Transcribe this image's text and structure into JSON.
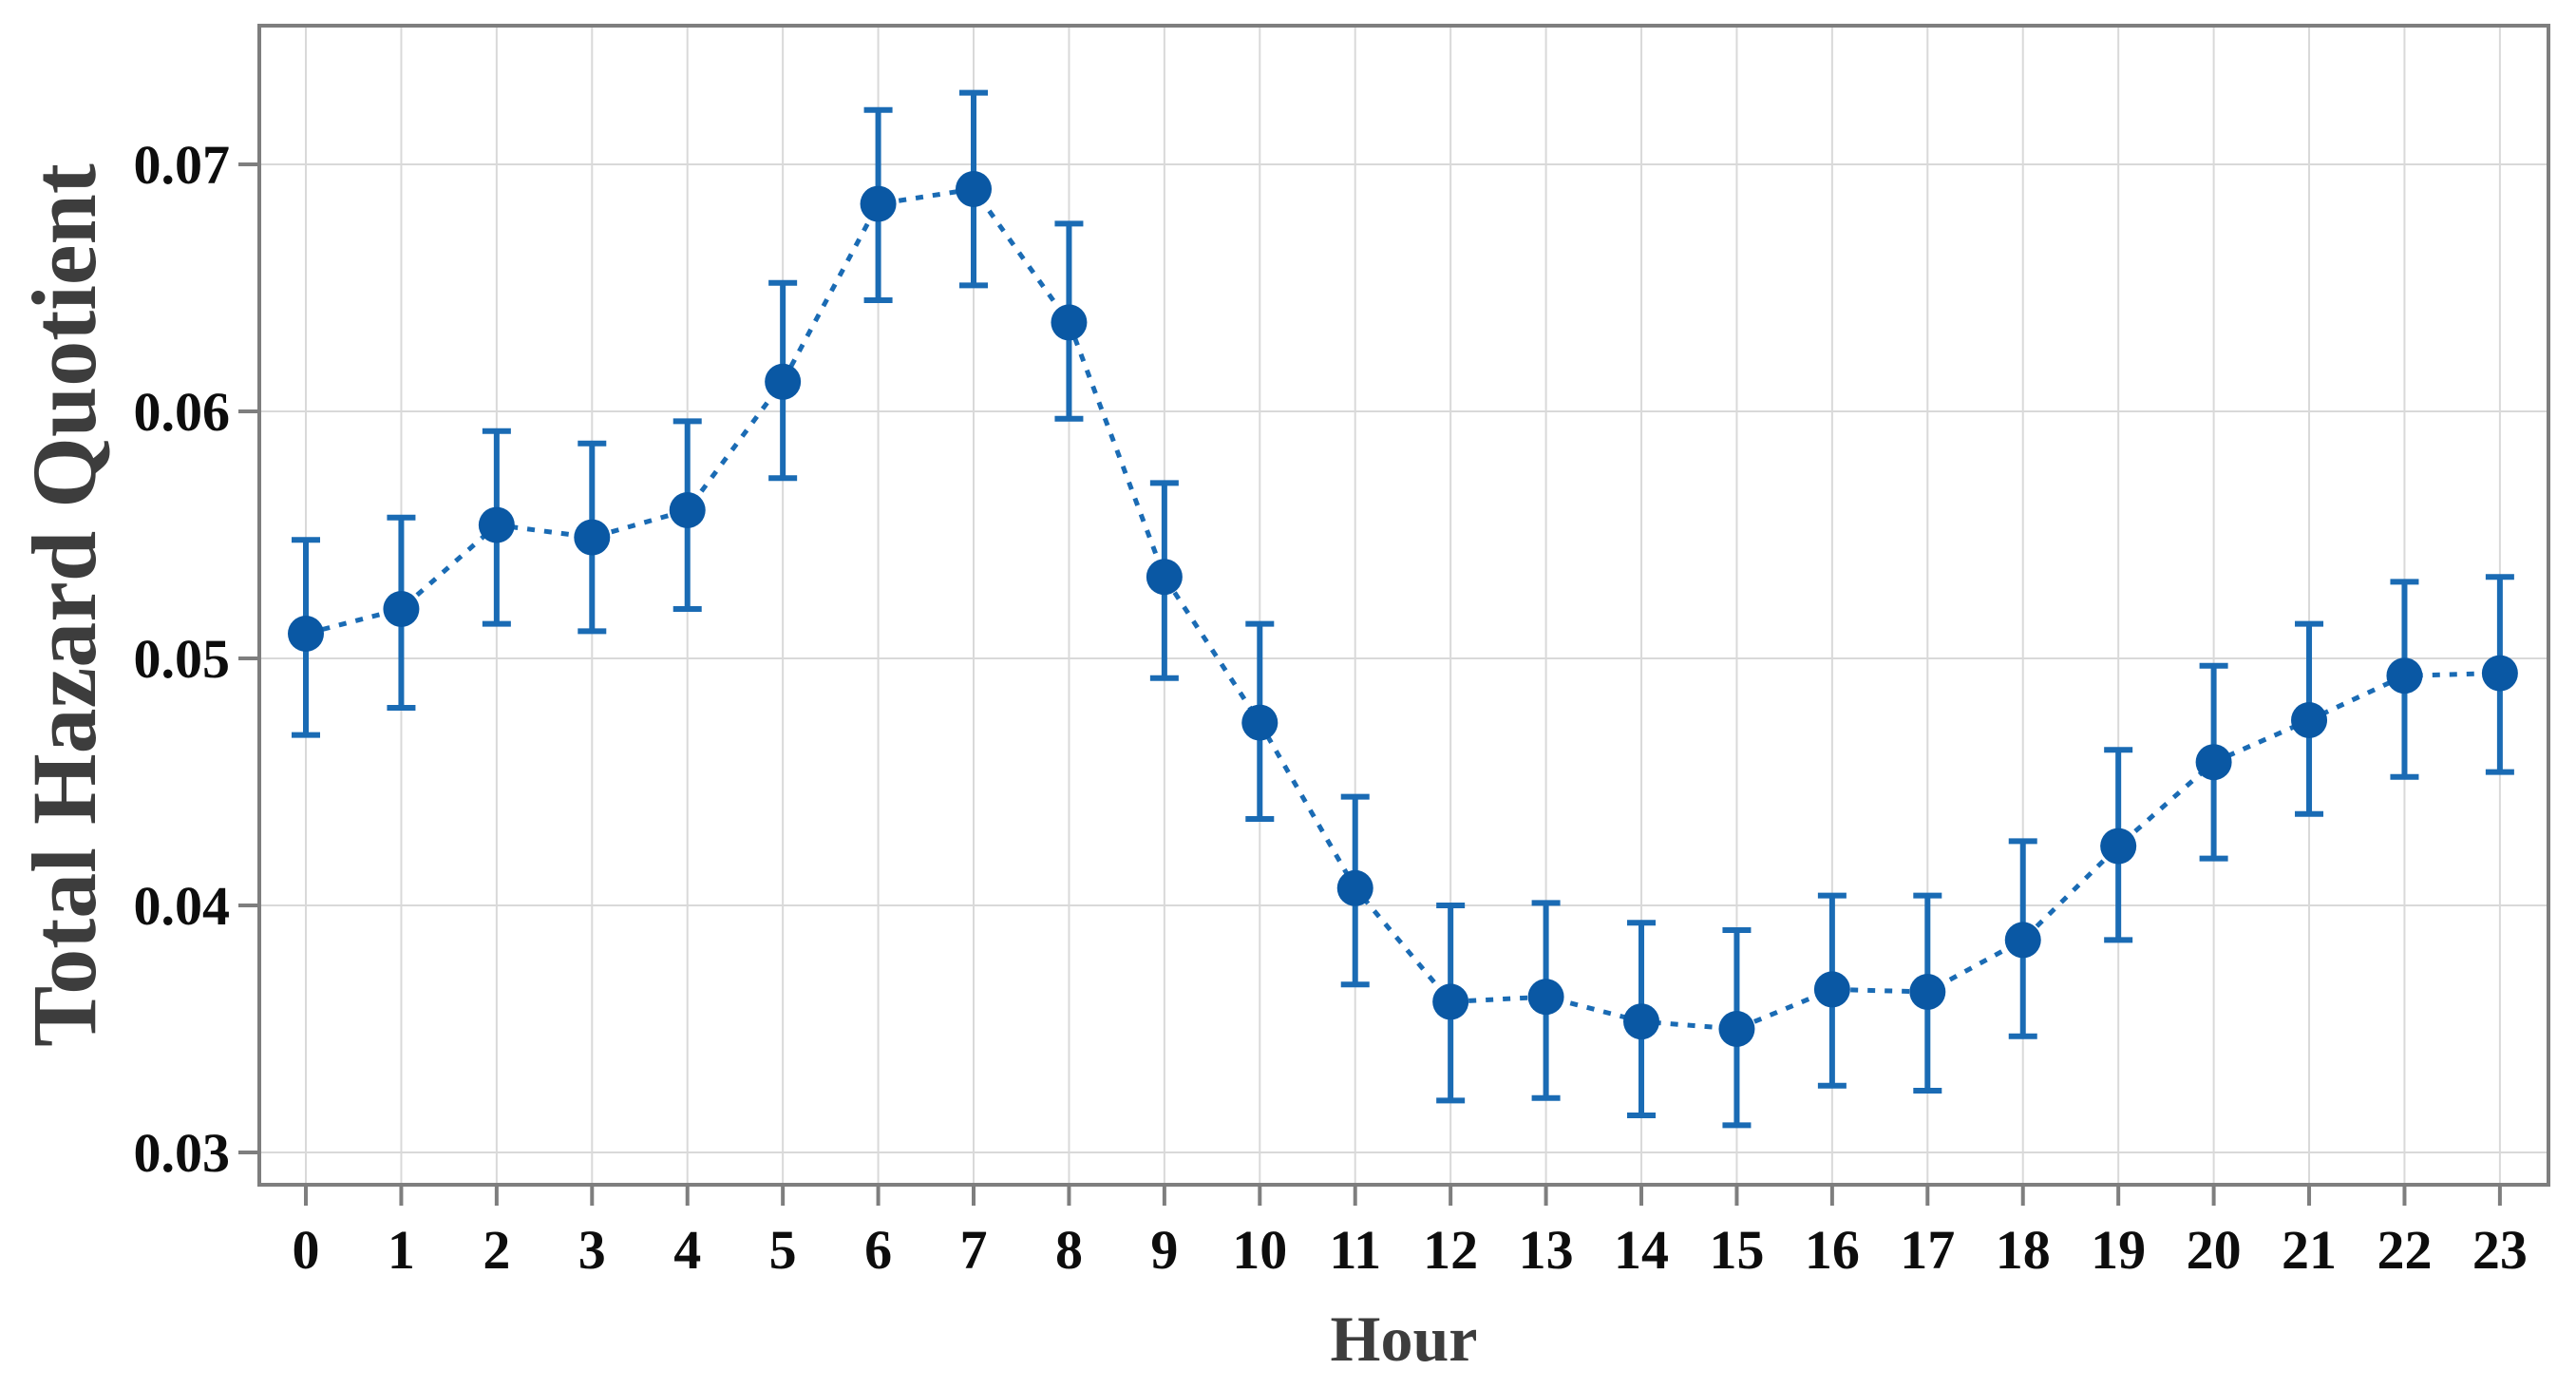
{
  "figure": {
    "background": "#ffffff"
  },
  "chart_data": {
    "type": "line",
    "title": "",
    "xlabel": "Hour",
    "ylabel": "Total Hazard Quotient",
    "x": [
      0,
      1,
      2,
      3,
      4,
      5,
      6,
      7,
      8,
      9,
      10,
      11,
      12,
      13,
      14,
      15,
      16,
      17,
      18,
      19,
      20,
      21,
      22,
      23
    ],
    "x_tick_labels": [
      "0",
      "1",
      "2",
      "3",
      "4",
      "5",
      "6",
      "7",
      "8",
      "9",
      "10",
      "11",
      "12",
      "13",
      "14",
      "15",
      "16",
      "17",
      "18",
      "19",
      "20",
      "21",
      "22",
      "23"
    ],
    "series": [
      {
        "name": "Total Hazard Quotient",
        "values": [
          0.051,
          0.052,
          0.0554,
          0.0549,
          0.056,
          0.0612,
          0.0684,
          0.069,
          0.0636,
          0.0533,
          0.0474,
          0.0407,
          0.0361,
          0.0363,
          0.0353,
          0.035,
          0.0366,
          0.0365,
          0.0386,
          0.0424,
          0.0458,
          0.0475,
          0.0493,
          0.0494
        ],
        "err_low": [
          0.0469,
          0.048,
          0.0514,
          0.0511,
          0.052,
          0.0573,
          0.0645,
          0.0651,
          0.0597,
          0.0492,
          0.0435,
          0.0368,
          0.0321,
          0.0322,
          0.0315,
          0.0311,
          0.0327,
          0.0325,
          0.0347,
          0.0386,
          0.0419,
          0.0437,
          0.0452,
          0.0454
        ],
        "err_high": [
          0.0548,
          0.0557,
          0.0592,
          0.0587,
          0.0596,
          0.0652,
          0.0722,
          0.0729,
          0.0676,
          0.0571,
          0.0514,
          0.0444,
          0.04,
          0.0401,
          0.0393,
          0.039,
          0.0404,
          0.0404,
          0.0426,
          0.0463,
          0.0497,
          0.0514,
          0.0531,
          0.0533
        ]
      }
    ],
    "y_ticks": [
      0.03,
      0.04,
      0.05,
      0.06,
      0.07
    ],
    "y_tick_labels": [
      "0.03",
      "0.04",
      "0.05",
      "0.06",
      "0.07"
    ],
    "ylim": [
      0.0287,
      0.0756
    ],
    "grid": true,
    "legend_position": "none",
    "marker": "circle",
    "line_style": "dotted",
    "colors": {
      "marker": "#0a58a4",
      "line": "#1a6bb4",
      "error_bar": "#1a6bb4",
      "grid": "#d9d9d9",
      "axis_border": "#7e7e7e",
      "tick": "#7e7e7e",
      "tick_label": "#0d0d0d",
      "axis_title": "#3d3d3d"
    }
  }
}
